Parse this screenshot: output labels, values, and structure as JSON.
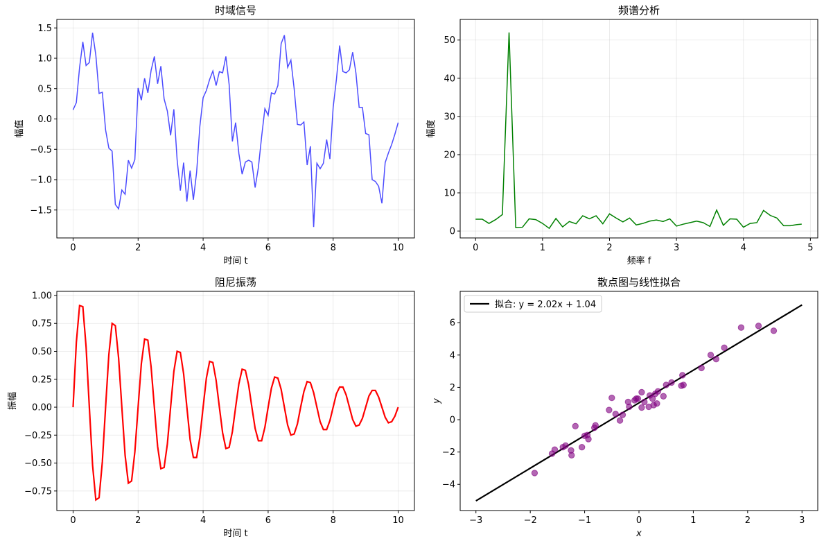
{
  "chart_data": [
    {
      "type": "line",
      "title": "时域信号",
      "xlabel": "时间 t",
      "ylabel": "幅值",
      "color": "#0000ff",
      "grid": true,
      "xlim": [
        -0.5,
        10.5
      ],
      "ylim": [
        -1.96,
        1.64
      ],
      "xticks": [
        0,
        2,
        4,
        6,
        8,
        10
      ],
      "yticks": [
        {
          "value": -1.5,
          "label": "−1.5"
        },
        {
          "value": -1.0,
          "label": "−1.0"
        },
        {
          "value": -0.5,
          "label": "−0.5"
        },
        {
          "value": 0,
          "label": "0.0"
        },
        0.5,
        {
          "value": 1,
          "label": "1.0"
        },
        1.5
      ],
      "x": [
        0,
        0.1,
        0.2,
        0.3,
        0.4,
        0.5,
        0.6,
        0.7,
        0.8,
        0.9,
        1.0,
        1.1,
        1.2,
        1.3,
        1.4,
        1.5,
        1.6,
        1.7,
        1.8,
        1.9,
        2.0,
        2.1,
        2.2,
        2.3,
        2.4,
        2.5,
        2.6,
        2.7,
        2.8,
        2.9,
        3.0,
        3.1,
        3.2,
        3.3,
        3.4,
        3.5,
        3.6,
        3.7,
        3.8,
        3.9,
        4.0,
        4.1,
        4.2,
        4.3,
        4.4,
        4.5,
        4.6,
        4.7,
        4.8,
        4.9,
        5.0,
        5.1,
        5.2,
        5.3,
        5.4,
        5.5,
        5.6,
        5.7,
        5.8,
        5.9,
        6.0,
        6.1,
        6.2,
        6.3,
        6.4,
        6.5,
        6.6,
        6.7,
        6.8,
        6.9,
        7.0,
        7.1,
        7.2,
        7.3,
        7.4,
        7.5,
        7.6,
        7.7,
        7.8,
        7.9,
        8.0,
        8.1,
        8.2,
        8.3,
        8.4,
        8.5,
        8.6,
        8.7,
        8.8,
        8.9,
        9.0,
        9.1,
        9.2,
        9.3,
        9.4,
        9.5,
        9.6,
        9.7,
        9.8,
        9.9,
        10.0
      ],
      "values": [
        0.15,
        0.27,
        0.85,
        1.27,
        0.88,
        0.93,
        1.42,
        1.05,
        0.42,
        0.44,
        -0.18,
        -0.48,
        -0.53,
        -1.41,
        -1.48,
        -1.17,
        -1.24,
        -0.68,
        -0.81,
        -0.67,
        0.51,
        0.31,
        0.67,
        0.43,
        0.8,
        1.03,
        0.58,
        0.87,
        0.33,
        0.13,
        -0.27,
        0.16,
        -0.67,
        -1.18,
        -0.72,
        -1.36,
        -0.85,
        -1.33,
        -0.88,
        -0.12,
        0.35,
        0.47,
        0.65,
        0.79,
        0.55,
        0.78,
        0.76,
        1.03,
        0.57,
        -0.37,
        -0.06,
        -0.57,
        -0.91,
        -0.71,
        -0.68,
        -0.71,
        -1.13,
        -0.8,
        -0.29,
        0.17,
        0.06,
        0.43,
        0.41,
        0.55,
        1.24,
        1.38,
        0.85,
        0.97,
        0.5,
        -0.09,
        -0.1,
        -0.05,
        -0.76,
        -0.45,
        -1.78,
        -0.73,
        -0.82,
        -0.73,
        -0.34,
        -0.66,
        0.19,
        0.65,
        1.21,
        0.78,
        0.76,
        0.81,
        1.1,
        0.76,
        0.19,
        0.19,
        -0.24,
        -0.26,
        -1.0,
        -1.03,
        -1.11,
        -1.39,
        -0.72,
        -0.56,
        -0.42,
        -0.25,
        -0.06
      ]
    },
    {
      "type": "line",
      "title": "频谱分析",
      "xlabel": "频率 f",
      "ylabel": "幅度",
      "color": "#008000",
      "grid": true,
      "xlim": [
        -0.23,
        5.11
      ],
      "ylim": [
        -1.8,
        55.4
      ],
      "xticks": [
        0,
        1,
        2,
        3,
        4,
        5
      ],
      "yticks": [
        0,
        10,
        20,
        30,
        40,
        50
      ],
      "x": [
        0,
        0.1,
        0.2,
        0.3,
        0.4,
        0.5,
        0.6,
        0.7,
        0.8,
        0.9,
        1.0,
        1.1,
        1.2,
        1.3,
        1.4,
        1.5,
        1.6,
        1.7,
        1.8,
        1.9,
        2.0,
        2.1,
        2.2,
        2.3,
        2.4,
        2.5,
        2.6,
        2.7,
        2.8,
        2.9,
        3.0,
        3.1,
        3.2,
        3.3,
        3.4,
        3.5,
        3.6,
        3.7,
        3.8,
        3.9,
        4.0,
        4.1,
        4.2,
        4.3,
        4.4,
        4.5,
        4.6,
        4.7,
        4.8,
        4.87
      ],
      "values": [
        3.1,
        3.1,
        2.0,
        3.0,
        4.3,
        52,
        0.9,
        1.0,
        3.2,
        3.0,
        2.0,
        0.7,
        3.3,
        1.1,
        2.5,
        1.9,
        4.0,
        3.2,
        4.0,
        1.9,
        4.5,
        3.4,
        2.4,
        3.4,
        1.6,
        2.0,
        2.6,
        2.9,
        2.5,
        3.2,
        1.3,
        1.8,
        2.2,
        2.6,
        2.2,
        1.2,
        5.5,
        1.5,
        3.2,
        3.1,
        1.0,
        2.0,
        2.2,
        5.4,
        4.1,
        3.4,
        1.4,
        1.4,
        1.7,
        1.8
      ]
    },
    {
      "type": "line",
      "title": "阻尼振荡",
      "xlabel": "时间 t",
      "ylabel": "振幅",
      "color": "#ff0000",
      "grid": true,
      "xlim": [
        -0.5,
        10.5
      ],
      "ylim": [
        -0.925,
        1.037
      ],
      "xticks": [
        0,
        2,
        4,
        6,
        8,
        10
      ],
      "yticks": [
        {
          "value": -0.75,
          "label": "−0.75"
        },
        {
          "value": -0.5,
          "label": "−0.50"
        },
        {
          "value": -0.25,
          "label": "−0.25"
        },
        {
          "value": 0,
          "label": "0.00"
        },
        0.25,
        {
          "value": 0.5,
          "label": "0.50"
        },
        0.75,
        {
          "value": 1,
          "label": "1.00"
        }
      ],
      "x": [
        0,
        0.1,
        0.2,
        0.3,
        0.4,
        0.5,
        0.6,
        0.7,
        0.8,
        0.9,
        1.0,
        1.1,
        1.2,
        1.3,
        1.4,
        1.5,
        1.6,
        1.7,
        1.8,
        1.9,
        2.0,
        2.1,
        2.2,
        2.3,
        2.4,
        2.5,
        2.6,
        2.7,
        2.8,
        2.9,
        3.0,
        3.1,
        3.2,
        3.3,
        3.4,
        3.5,
        3.6,
        3.7,
        3.8,
        3.9,
        4.0,
        4.1,
        4.2,
        4.3,
        4.4,
        4.5,
        4.6,
        4.7,
        4.8,
        4.9,
        5.0,
        5.1,
        5.2,
        5.3,
        5.4,
        5.5,
        5.6,
        5.7,
        5.8,
        5.9,
        6.0,
        6.1,
        6.2,
        6.3,
        6.4,
        6.5,
        6.6,
        6.7,
        6.8,
        6.9,
        7.0,
        7.1,
        7.2,
        7.3,
        7.4,
        7.5,
        7.6,
        7.7,
        7.8,
        7.9,
        8.0,
        8.1,
        8.2,
        8.3,
        8.4,
        8.5,
        8.6,
        8.7,
        8.8,
        8.9,
        9.0,
        9.1,
        9.2,
        9.3,
        9.4,
        9.5,
        9.6,
        9.7,
        9.8,
        9.9,
        10.0
      ],
      "values": [
        0,
        0.58,
        0.91,
        0.9,
        0.54,
        0,
        -0.52,
        -0.83,
        -0.81,
        -0.49,
        0,
        0.47,
        0.75,
        0.73,
        0.44,
        0,
        -0.43,
        -0.68,
        -0.66,
        -0.4,
        0,
        0.39,
        0.61,
        0.6,
        0.36,
        0,
        -0.35,
        -0.55,
        -0.54,
        -0.33,
        0,
        0.32,
        0.5,
        0.49,
        0.3,
        0,
        -0.29,
        -0.45,
        -0.45,
        -0.27,
        0,
        0.26,
        0.41,
        0.4,
        0.24,
        0,
        -0.23,
        -0.37,
        -0.36,
        -0.22,
        0,
        0.21,
        0.34,
        0.33,
        0.2,
        0,
        -0.19,
        -0.3,
        -0.3,
        -0.18,
        0,
        0.17,
        0.27,
        0.26,
        0.16,
        0,
        -0.16,
        -0.25,
        -0.24,
        -0.15,
        0,
        0.14,
        0.23,
        0.22,
        0.13,
        0,
        -0.13,
        -0.2,
        -0.2,
        -0.12,
        0,
        0.12,
        0.18,
        0.18,
        0.11,
        0,
        -0.11,
        -0.17,
        -0.16,
        -0.1,
        0,
        0.1,
        0.15,
        0.15,
        0.09,
        0,
        -0.09,
        -0.14,
        -0.13,
        -0.08,
        0
      ]
    },
    {
      "type": "scatter",
      "title": "散点图与线性拟合",
      "xlabel": "x",
      "ylabel": "y",
      "grid": false,
      "legend": "upper left",
      "xlim": [
        -3.29,
        3.29
      ],
      "ylim": [
        -5.62,
        7.94
      ],
      "xticks": [
        {
          "value": -3,
          "label": "−3"
        },
        {
          "value": -2,
          "label": "−2"
        },
        {
          "value": -1,
          "label": "−1"
        },
        0,
        1,
        2,
        3
      ],
      "yticks": [
        {
          "value": -4,
          "label": "−4"
        },
        {
          "value": -2,
          "label": "−2"
        },
        0,
        2,
        4,
        6
      ],
      "series": [
        {
          "name": "拟合: y = 2.02x + 1.04",
          "color": "#000000",
          "kind": "line",
          "x": [
            -3,
            3
          ],
          "values": [
            -5.02,
            7.1
          ]
        },
        {
          "color": "#800080",
          "kind": "points",
          "x": [
            -1.92,
            -1.6,
            -1.55,
            -1.4,
            -1.35,
            -1.25,
            -1.24,
            -1.17,
            -1.05,
            -1.0,
            -0.93,
            -0.95,
            -0.82,
            -0.8,
            -0.55,
            -0.5,
            -0.43,
            -0.35,
            -0.3,
            -0.2,
            -0.18,
            -0.08,
            -0.05,
            -0.02,
            0.05,
            0.05,
            0.1,
            0.18,
            0.2,
            0.25,
            0.27,
            0.3,
            0.33,
            0.35,
            0.45,
            0.5,
            0.6,
            0.78,
            0.8,
            0.82,
            1.15,
            1.32,
            1.42,
            1.57,
            1.88,
            2.2,
            2.48
          ],
          "values": [
            -3.3,
            -2.1,
            -1.85,
            -1.7,
            -1.6,
            -1.9,
            -2.2,
            -0.4,
            -1.7,
            -1.0,
            -1.2,
            -0.95,
            -0.5,
            -0.35,
            0.6,
            1.35,
            0.35,
            -0.05,
            0.3,
            1.1,
            0.8,
            1.2,
            1.3,
            1.3,
            1.7,
            0.75,
            1.1,
            0.8,
            1.5,
            1.3,
            0.9,
            1.6,
            1.0,
            1.75,
            1.45,
            2.15,
            2.3,
            2.1,
            2.75,
            2.15,
            3.2,
            4.0,
            3.75,
            4.45,
            5.7,
            5.8,
            5.5
          ]
        }
      ]
    }
  ]
}
